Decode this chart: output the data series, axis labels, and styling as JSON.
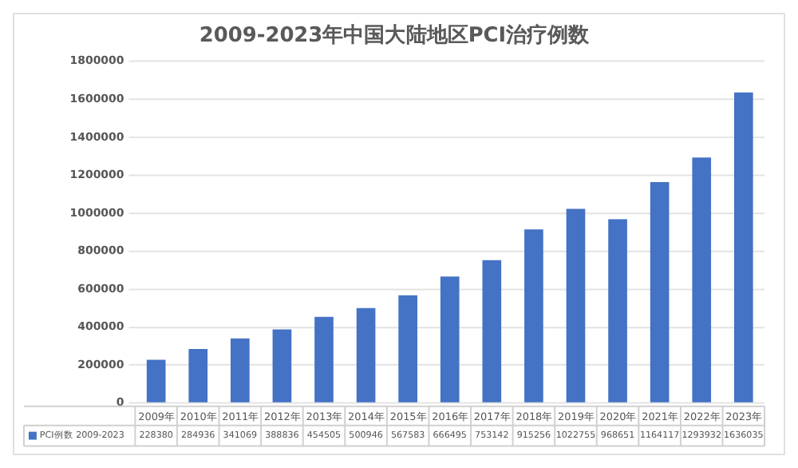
{
  "chart_data": {
    "type": "bar",
    "title": "2009-2023年中国大陆地区PCI治疗例数",
    "categories": [
      "2009年",
      "2010年",
      "2011年",
      "2012年",
      "2013年",
      "2014年",
      "2015年",
      "2016年",
      "2017年",
      "2018年",
      "2019年",
      "2020年",
      "2021年",
      "2022年",
      "2023年"
    ],
    "series": [
      {
        "name": "PCI例数 2009-2023",
        "color": "#4472c4",
        "values": [
          228380,
          284936,
          341069,
          388836,
          454505,
          500946,
          567583,
          666495,
          753142,
          915256,
          1022755,
          968651,
          1164117,
          1293932,
          1636035
        ]
      }
    ],
    "ylim": [
      0,
      1800000
    ],
    "yticks": [
      0,
      200000,
      400000,
      600000,
      800000,
      1000000,
      1200000,
      1400000,
      1600000,
      1800000
    ],
    "grid": "y",
    "data_labels": true,
    "legend": "bottom"
  }
}
